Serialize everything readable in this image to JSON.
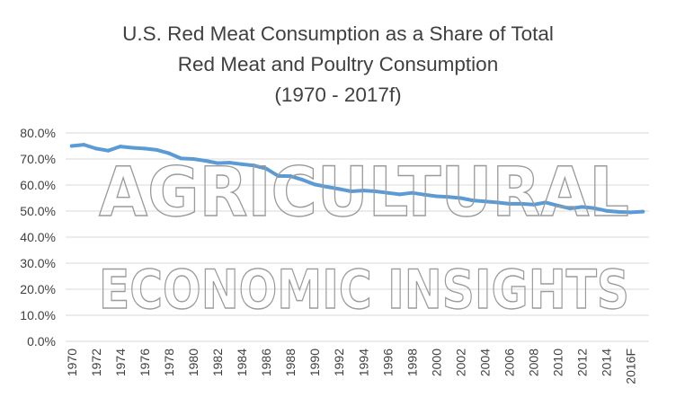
{
  "chart_data": {
    "type": "line",
    "title_lines": [
      "U.S. Red Meat Consumption as a Share of Total",
      "Red Meat and Poultry Consumption",
      "(1970 - 2017f)"
    ],
    "xlabel": "",
    "ylabel": "",
    "ylim": [
      0,
      80
    ],
    "y_ticks": [
      0,
      10,
      20,
      30,
      40,
      50,
      60,
      70,
      80
    ],
    "y_tick_labels": [
      "0.0%",
      "10.0%",
      "20.0%",
      "30.0%",
      "40.0%",
      "50.0%",
      "60.0%",
      "70.0%",
      "80.0%"
    ],
    "x_tick_labels": [
      "1970",
      "1972",
      "1974",
      "1976",
      "1978",
      "1980",
      "1982",
      "1984",
      "1986",
      "1988",
      "1990",
      "1992",
      "1994",
      "1996",
      "1998",
      "2000",
      "2002",
      "2004",
      "2006",
      "2008",
      "2010",
      "2012",
      "2014",
      "2016F"
    ],
    "grid": true,
    "legend": "none",
    "line_color": "#5b9bd5",
    "categories": [
      "1970",
      "1971",
      "1972",
      "1973",
      "1974",
      "1975",
      "1976",
      "1977",
      "1978",
      "1979",
      "1980",
      "1981",
      "1982",
      "1983",
      "1984",
      "1985",
      "1986",
      "1987",
      "1988",
      "1989",
      "1990",
      "1991",
      "1992",
      "1993",
      "1994",
      "1995",
      "1996",
      "1997",
      "1998",
      "1999",
      "2000",
      "2001",
      "2002",
      "2003",
      "2004",
      "2005",
      "2006",
      "2007",
      "2008",
      "2009",
      "2010",
      "2011",
      "2012",
      "2013",
      "2014",
      "2015",
      "2016F",
      "2017F"
    ],
    "values": [
      75.0,
      75.5,
      74.0,
      73.2,
      74.8,
      74.3,
      74.0,
      73.5,
      72.2,
      70.2,
      70.0,
      69.3,
      68.4,
      68.6,
      68.0,
      67.5,
      66.3,
      63.5,
      63.4,
      62.0,
      60.2,
      59.3,
      58.5,
      57.6,
      57.9,
      57.6,
      57.0,
      56.4,
      57.0,
      56.3,
      55.7,
      55.4,
      55.0,
      54.1,
      53.7,
      53.3,
      52.8,
      52.8,
      52.5,
      53.3,
      52.1,
      51.0,
      51.6,
      51.1,
      50.1,
      49.7,
      49.5,
      49.8
    ]
  },
  "watermark": {
    "line1": "AGRICULTURAL",
    "line2": "ECONOMIC INSIGHTS"
  }
}
